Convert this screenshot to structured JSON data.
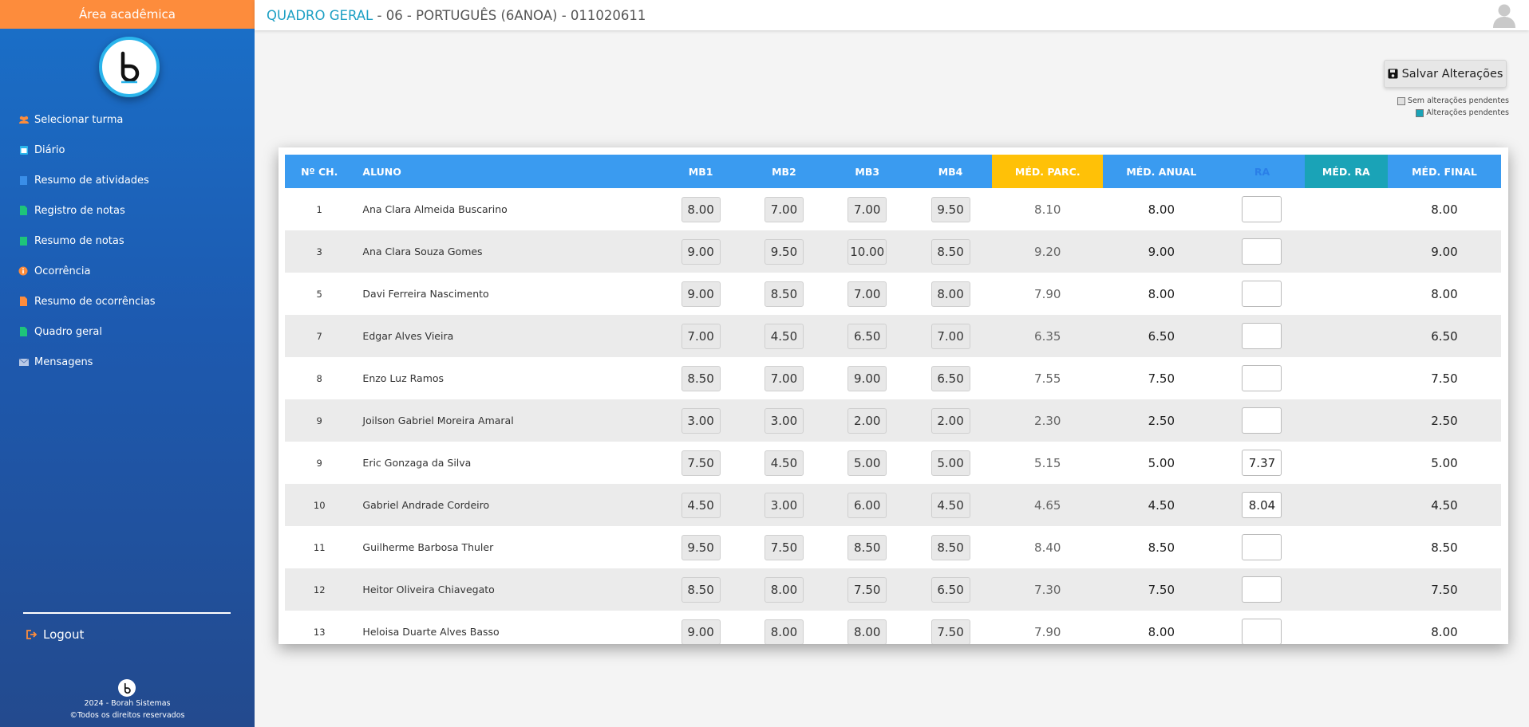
{
  "sidebar": {
    "header": "Área acadêmica",
    "items": [
      {
        "label": "Selecionar turma",
        "icon": "users-icon"
      },
      {
        "label": "Diário",
        "icon": "calendar-icon"
      },
      {
        "label": "Resumo de atividades",
        "icon": "square-icon"
      },
      {
        "label": "Registro de notas",
        "icon": "file-icon"
      },
      {
        "label": "Resumo de notas",
        "icon": "square-icon"
      },
      {
        "label": "Ocorrência",
        "icon": "info-icon"
      },
      {
        "label": "Resumo de ocorrências",
        "icon": "file-icon"
      },
      {
        "label": "Quadro geral",
        "icon": "file-icon"
      },
      {
        "label": "Mensagens",
        "icon": "envelope-icon"
      }
    ],
    "logout": "Logout",
    "footer_line1": "2024 - Borah Sistemas",
    "footer_line2": "©Todos os direitos reservados"
  },
  "topbar": {
    "title_highlight": "QUADRO GERAL",
    "title_rest": " - 06 - PORTUGUÊS (6ANOA) - 011020611"
  },
  "toolbar": {
    "save_label": "Salvar Alterações",
    "legend_no_changes": "Sem alterações pendentes",
    "legend_pending": "Alterações pendentes"
  },
  "table": {
    "headers": [
      "Nº CH.",
      "ALUNO",
      "MB1",
      "MB2",
      "MB3",
      "MB4",
      "MÉD. PARC.",
      "MÉD. ANUAL",
      "RA",
      "MÉD. RA",
      "MÉD. FINAL"
    ],
    "rows": [
      {
        "n": "1",
        "aluno": "Ana Clara Almeida Buscarino",
        "mb1": "8.00",
        "mb2": "7.00",
        "mb3": "7.00",
        "mb4": "9.50",
        "med_parc": "8.10",
        "med_anual": "8.00",
        "ra": "",
        "med_ra": "",
        "med_final": "8.00"
      },
      {
        "n": "3",
        "aluno": "Ana Clara Souza Gomes",
        "mb1": "9.00",
        "mb2": "9.50",
        "mb3": "10.00",
        "mb4": "8.50",
        "med_parc": "9.20",
        "med_anual": "9.00",
        "ra": "",
        "med_ra": "",
        "med_final": "9.00"
      },
      {
        "n": "5",
        "aluno": "Davi Ferreira Nascimento",
        "mb1": "9.00",
        "mb2": "8.50",
        "mb3": "7.00",
        "mb4": "8.00",
        "med_parc": "7.90",
        "med_anual": "8.00",
        "ra": "",
        "med_ra": "",
        "med_final": "8.00"
      },
      {
        "n": "7",
        "aluno": "Edgar Alves Vieira",
        "mb1": "7.00",
        "mb2": "4.50",
        "mb3": "6.50",
        "mb4": "7.00",
        "med_parc": "6.35",
        "med_anual": "6.50",
        "ra": "",
        "med_ra": "",
        "med_final": "6.50"
      },
      {
        "n": "8",
        "aluno": "Enzo Luz Ramos",
        "mb1": "8.50",
        "mb2": "7.00",
        "mb3": "9.00",
        "mb4": "6.50",
        "med_parc": "7.55",
        "med_anual": "7.50",
        "ra": "",
        "med_ra": "",
        "med_final": "7.50"
      },
      {
        "n": "9",
        "aluno": "Joilson Gabriel Moreira Amaral",
        "mb1": "3.00",
        "mb2": "3.00",
        "mb3": "2.00",
        "mb4": "2.00",
        "med_parc": "2.30",
        "med_anual": "2.50",
        "ra": "",
        "med_ra": "",
        "med_final": "2.50"
      },
      {
        "n": "9",
        "aluno": "Eric Gonzaga da Silva",
        "mb1": "7.50",
        "mb2": "4.50",
        "mb3": "5.00",
        "mb4": "5.00",
        "med_parc": "5.15",
        "med_anual": "5.00",
        "ra": "7.37",
        "med_ra": "",
        "med_final": "5.00"
      },
      {
        "n": "10",
        "aluno": "Gabriel Andrade Cordeiro",
        "mb1": "4.50",
        "mb2": "3.00",
        "mb3": "6.00",
        "mb4": "4.50",
        "med_parc": "4.65",
        "med_anual": "4.50",
        "ra": "8.04",
        "med_ra": "",
        "med_final": "4.50"
      },
      {
        "n": "11",
        "aluno": "Guilherme Barbosa Thuler",
        "mb1": "9.50",
        "mb2": "7.50",
        "mb3": "8.50",
        "mb4": "8.50",
        "med_parc": "8.40",
        "med_anual": "8.50",
        "ra": "",
        "med_ra": "",
        "med_final": "8.50"
      },
      {
        "n": "12",
        "aluno": "Heitor Oliveira Chiavegato",
        "mb1": "8.50",
        "mb2": "8.00",
        "mb3": "7.50",
        "mb4": "6.50",
        "med_parc": "7.30",
        "med_anual": "7.50",
        "ra": "",
        "med_ra": "",
        "med_final": "7.50"
      },
      {
        "n": "13",
        "aluno": "Heloisa Duarte Alves Basso",
        "mb1": "9.00",
        "mb2": "8.00",
        "mb3": "8.00",
        "mb4": "7.50",
        "med_parc": "7.90",
        "med_anual": "8.00",
        "ra": "",
        "med_ra": "",
        "med_final": "8.00"
      }
    ]
  },
  "colors": {
    "sidebar_header": "#fd8c3c",
    "table_header": "#3a9bf0",
    "med_parc_header": "#ffc107",
    "med_ra_header": "#1aa3b7",
    "title_accent": "#1ea0c4"
  }
}
